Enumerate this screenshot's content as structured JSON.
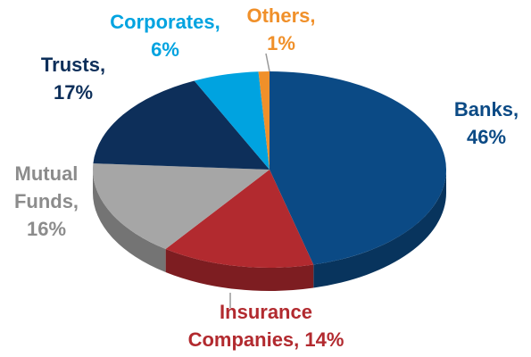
{
  "chart_data": {
    "type": "pie",
    "categories": [
      "Banks",
      "Insurance Companies",
      "Mutual Funds",
      "Trusts",
      "Corporates",
      "Others"
    ],
    "values": [
      46,
      14,
      16,
      17,
      6,
      1
    ],
    "value_labels": [
      "Banks,\n46%",
      "Insurance\nCompanies, 14%",
      "Mutual\nFunds,\n16%",
      "Trusts,\n17%",
      "Corporates,\n6%",
      "Others,\n1%"
    ],
    "colors": [
      "#0b4a85",
      "#b22a2f",
      "#a6a6a6",
      "#0d2f5a",
      "#00a3e0",
      "#f0902a"
    ],
    "label_colors": [
      "#0b4a85",
      "#b22a2f",
      "#8c8c8c",
      "#0d2f5a",
      "#00a3e0",
      "#f0902a"
    ]
  }
}
